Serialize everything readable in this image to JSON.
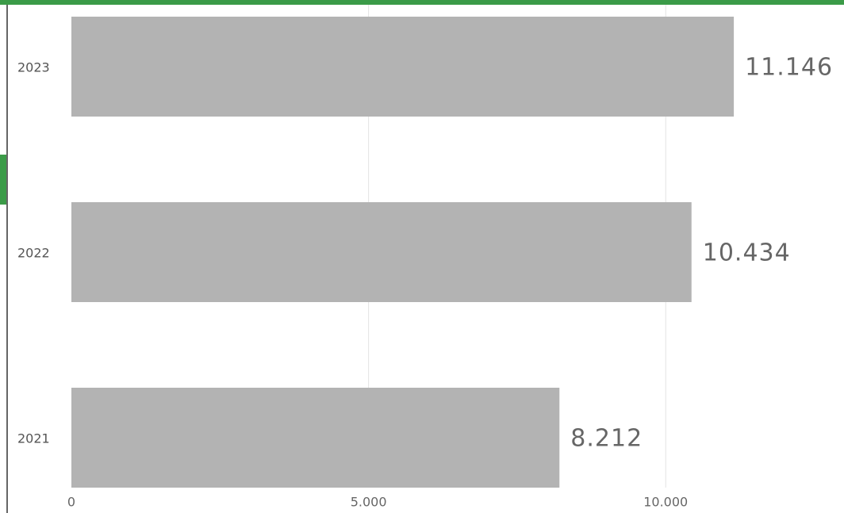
{
  "chart_data": {
    "type": "bar",
    "orientation": "horizontal",
    "categories": [
      "2023",
      "2022",
      "2021"
    ],
    "values": [
      11146,
      10434,
      8212
    ],
    "value_labels": [
      "11.146",
      "10.434",
      "8.212"
    ],
    "color": "#b3b3b3",
    "xlim": [
      0,
      13000
    ],
    "xticks": [
      0,
      {
        "value": 5000,
        "label": "5.000"
      },
      {
        "value": 10000,
        "label": "10.000"
      }
    ],
    "grid": true
  }
}
